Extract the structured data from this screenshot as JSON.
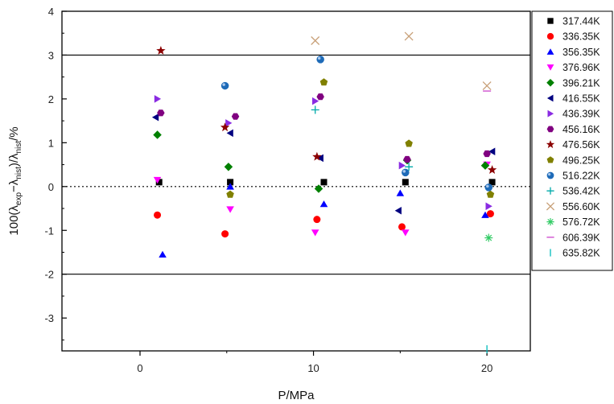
{
  "chart_data": {
    "type": "scatter",
    "title": "",
    "xlabel": "P/MPa",
    "ylabel": {
      "prefix": "100(λ",
      "sub1": "exp",
      "mid": "−λ",
      "sub2": "nist",
      "mid2": ")/λ",
      "sub3": "nist",
      "suffix": "/%"
    },
    "xlim": [
      -4.5,
      22.5
    ],
    "ylim": [
      -3.75,
      4
    ],
    "xticks": [
      "0",
      "10",
      "20"
    ],
    "xtick_values": [
      0,
      10,
      20
    ],
    "yticks": [
      "-3",
      "-2",
      "-1",
      "0",
      "1",
      "2",
      "3",
      "4"
    ],
    "ytick_values": [
      -3,
      -2,
      -1,
      0,
      1,
      2,
      3,
      4
    ],
    "reference_lines": [
      {
        "y": 3,
        "style": "solid"
      },
      {
        "y": 0,
        "style": "dotted"
      },
      {
        "y": -2,
        "style": "solid"
      }
    ],
    "legend_position": "right",
    "series": [
      {
        "name": "317.44K",
        "marker": "square",
        "color": "#000000",
        "points": [
          [
            1.1,
            0.1
          ],
          [
            5.2,
            0.1
          ],
          [
            10.6,
            0.1
          ],
          [
            15.3,
            0.1
          ],
          [
            20.3,
            0.1
          ]
        ]
      },
      {
        "name": "336.35K",
        "marker": "circle",
        "color": "#ff0000",
        "points": [
          [
            1.0,
            -0.65
          ],
          [
            4.9,
            -1.08
          ],
          [
            10.2,
            -0.75
          ],
          [
            15.1,
            -0.92
          ],
          [
            20.2,
            -0.62
          ]
        ]
      },
      {
        "name": "356.35K",
        "marker": "triangle-up",
        "color": "#0000ff",
        "points": [
          [
            1.3,
            -1.55
          ],
          [
            5.2,
            0.0
          ],
          [
            10.6,
            -0.4
          ],
          [
            15.0,
            -0.15
          ],
          [
            19.9,
            -0.65
          ]
        ]
      },
      {
        "name": "376.96K",
        "marker": "triangle-down",
        "color": "#ff00ff",
        "points": [
          [
            1.0,
            0.15
          ],
          [
            5.2,
            -0.52
          ],
          [
            10.1,
            -1.05
          ],
          [
            15.3,
            -1.05
          ],
          [
            20.0,
            0.5
          ]
        ]
      },
      {
        "name": "396.21K",
        "marker": "diamond",
        "color": "#008000",
        "points": [
          [
            1.0,
            1.18
          ],
          [
            5.1,
            0.45
          ],
          [
            10.3,
            -0.05
          ],
          [
            15.4,
            0.6
          ],
          [
            19.9,
            0.48
          ]
        ]
      },
      {
        "name": "416.55K",
        "marker": "triangle-left",
        "color": "#000080",
        "points": [
          [
            0.9,
            1.58
          ],
          [
            5.2,
            1.22
          ],
          [
            10.4,
            0.65
          ],
          [
            14.9,
            -0.55
          ],
          [
            20.3,
            0.8
          ]
        ]
      },
      {
        "name": "436.39K",
        "marker": "triangle-right",
        "color": "#8a2be2",
        "points": [
          [
            1.0,
            2.0
          ],
          [
            5.1,
            1.45
          ],
          [
            10.1,
            1.95
          ],
          [
            15.1,
            0.48
          ],
          [
            20.1,
            -0.45
          ]
        ]
      },
      {
        "name": "456.16K",
        "marker": "hexagon",
        "color": "#800080",
        "points": [
          [
            1.2,
            1.68
          ],
          [
            5.5,
            1.6
          ],
          [
            10.4,
            2.05
          ],
          [
            15.4,
            0.62
          ],
          [
            20.0,
            0.75
          ]
        ]
      },
      {
        "name": "476.56K",
        "marker": "star",
        "color": "#8b0000",
        "points": [
          [
            1.2,
            3.1
          ],
          [
            4.9,
            1.35
          ],
          [
            10.2,
            0.68
          ],
          [
            20.3,
            0.38
          ]
        ]
      },
      {
        "name": "496.25K",
        "marker": "pentagon",
        "color": "#808000",
        "points": [
          [
            5.2,
            -0.18
          ],
          [
            10.6,
            2.38
          ],
          [
            15.5,
            0.98
          ],
          [
            20.2,
            -0.18
          ]
        ]
      },
      {
        "name": "516.22K",
        "marker": "sphere",
        "color": "#1e6bb8",
        "points": [
          [
            4.9,
            2.3
          ],
          [
            10.4,
            2.9
          ],
          [
            15.3,
            0.32
          ],
          [
            20.1,
            -0.02
          ]
        ]
      },
      {
        "name": "536.42K",
        "marker": "plus",
        "color": "#00aaaa",
        "points": [
          [
            10.1,
            1.75
          ],
          [
            15.5,
            0.45
          ]
        ]
      },
      {
        "name": "556.60K",
        "marker": "x",
        "color": "#c8a078",
        "points": [
          [
            10.1,
            3.33
          ],
          [
            15.5,
            3.43
          ],
          [
            20.0,
            2.3
          ]
        ]
      },
      {
        "name": "576.72K",
        "marker": "asterisk",
        "color": "#33cc66",
        "points": [
          [
            20.1,
            -1.17
          ]
        ]
      },
      {
        "name": "606.39K",
        "marker": "hline",
        "color": "#cc44cc",
        "points": [
          [
            20.0,
            2.18
          ]
        ]
      },
      {
        "name": "635.82K",
        "marker": "vline",
        "color": "#00bbbb",
        "points": [
          [
            20.0,
            -3.8
          ]
        ]
      }
    ]
  }
}
